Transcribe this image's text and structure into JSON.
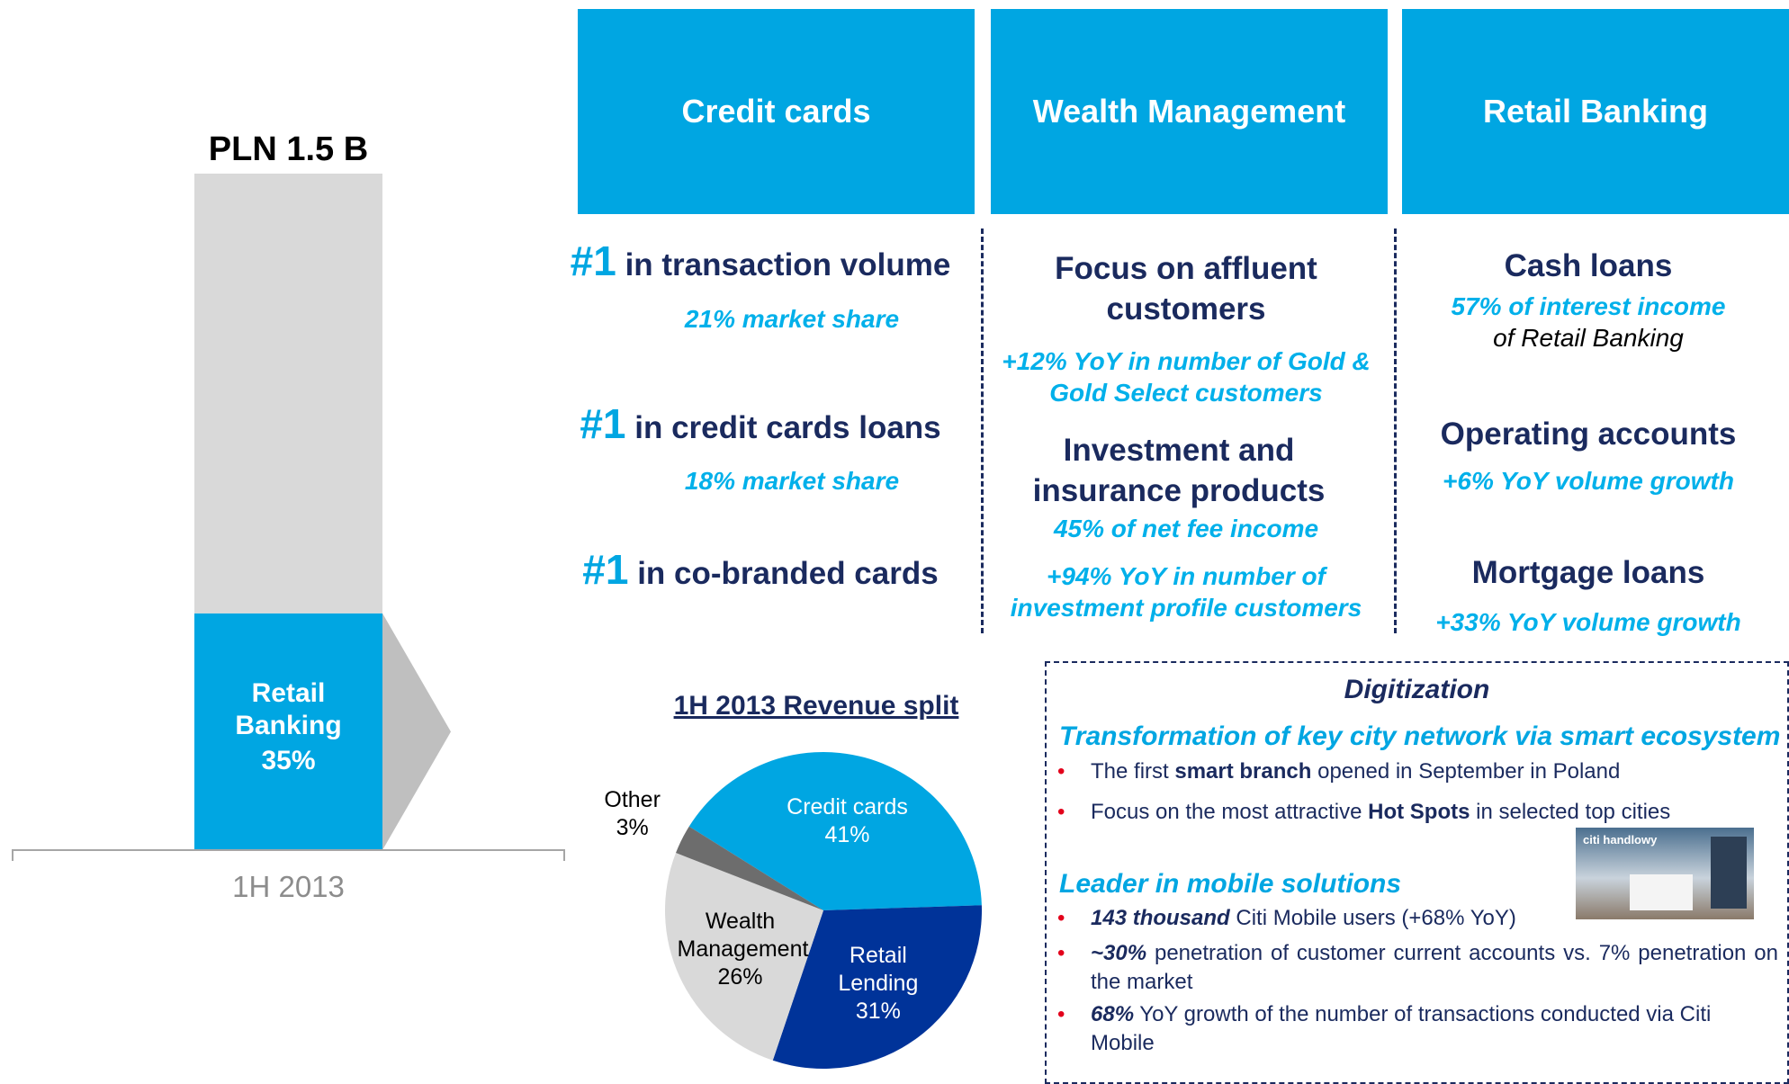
{
  "chart_data": [
    {
      "type": "bar",
      "stacked": true,
      "title": "PLN 1.5 B",
      "categories": [
        "1H 2013"
      ],
      "series": [
        {
          "name": "Retail Banking",
          "color": "#00a6e2",
          "values": [
            35
          ],
          "value_labels": [
            "35%"
          ]
        },
        {
          "color": "#d9d9d9",
          "values": [
            65
          ]
        }
      ],
      "ylim": [
        0,
        100
      ]
    },
    {
      "type": "pie",
      "title": "1H 2013 Revenue split",
      "categories": [
        "Credit cards",
        "Retail Lending",
        "Wealth Management",
        "Other"
      ],
      "values": [
        41,
        31,
        26,
        3
      ],
      "value_labels": [
        "41%",
        "31%",
        "26%",
        "3%"
      ],
      "colors": [
        "#00a6e2",
        "#003399",
        "#d9d9d9",
        "#6d6d6d"
      ]
    }
  ],
  "headers": [
    "Credit cards",
    "Wealth Management",
    "Retail Banking"
  ],
  "credit_cards": [
    {
      "rank": "#1",
      "text": "in transaction volume",
      "note": "21% market share"
    },
    {
      "rank": "#1",
      "text": "in credit cards loans",
      "note": "18% market share"
    },
    {
      "rank": "#1",
      "text": "in co-branded cards"
    }
  ],
  "wealth_management": {
    "heading_1": "Focus on affluent customers",
    "note_1": "+12% YoY in number of Gold & Gold Select customers",
    "heading_2": "Investment and insurance products",
    "note_2": "45% of net fee income",
    "note_3": "+94% YoY in number of investment profile customers"
  },
  "retail_banking": [
    {
      "heading": "Cash loans",
      "note": "57% of interest income",
      "subnote": "of Retail Banking"
    },
    {
      "heading": "Operating accounts",
      "note": "+6% YoY volume growth"
    },
    {
      "heading": "Mortgage loans",
      "note": "+33% YoY volume growth"
    }
  ],
  "digitization": {
    "title": "Digitization",
    "section_1": "Transformation of key city network via smart ecosystem",
    "bullets_1": [
      [
        {
          "text": "The first "
        },
        {
          "text": "smart branch",
          "style": "bold"
        },
        {
          "text": " opened in September in Poland"
        }
      ],
      [
        {
          "text": "Focus on the most attractive "
        },
        {
          "text": "Hot Spots",
          "style": "bold"
        },
        {
          "text": " in selected top cities"
        }
      ]
    ],
    "section_2": "Leader in mobile solutions",
    "bullets_2": [
      [
        {
          "text": "143 thousand",
          "style": "bold-italic"
        },
        {
          "text": " Citi Mobile users (+68% YoY)"
        }
      ],
      [
        {
          "text": "~30%",
          "style": "bold-italic"
        },
        {
          "text": " penetration of customer current accounts vs. 7% penetration on the market"
        }
      ],
      [
        {
          "text": "68%",
          "style": "bold-italic"
        },
        {
          "text": " YoY growth of the number of transactions conducted via Citi Mobile"
        }
      ]
    ],
    "photo_sign": "citi handlowy"
  }
}
